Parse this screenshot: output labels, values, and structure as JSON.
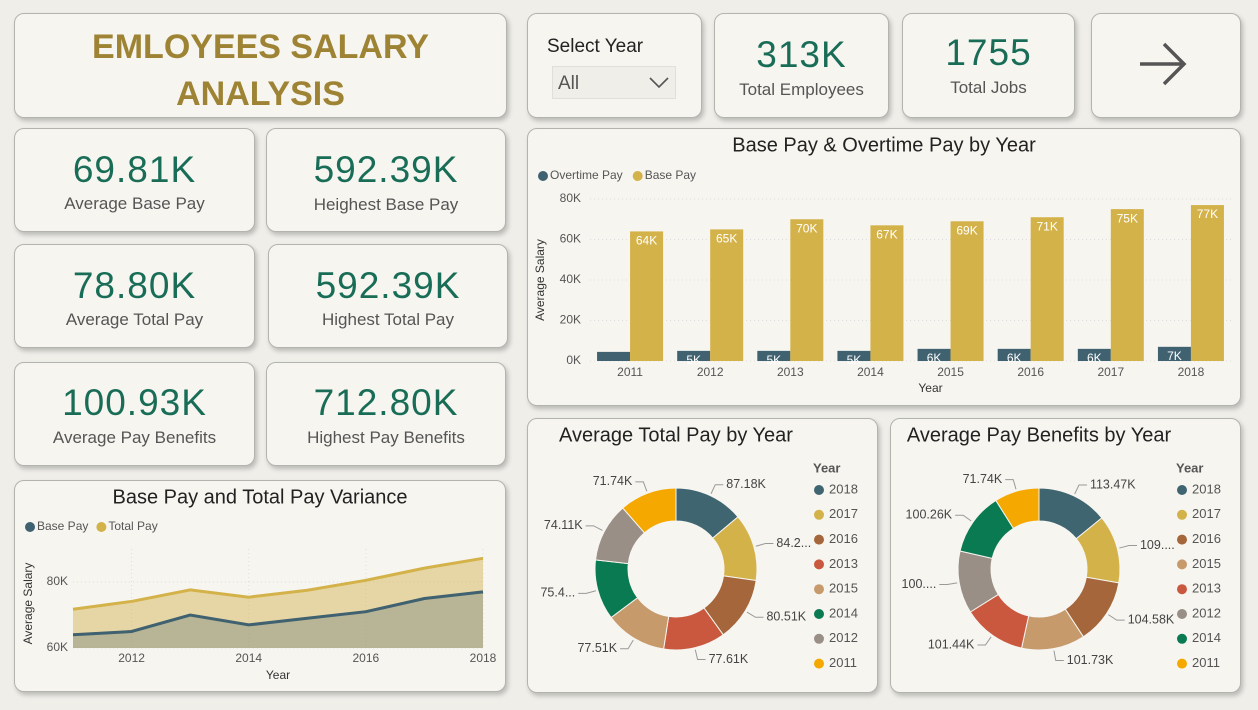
{
  "header": {
    "title": "EMLOYEES SALARY ANALYSIS"
  },
  "filter": {
    "label": "Select Year",
    "value": "All"
  },
  "kpis": [
    {
      "value": "313K",
      "label": "Total Employees"
    },
    {
      "value": "1755",
      "label": "Total Jobs"
    },
    {
      "value": "69.81K",
      "label": "Average Base Pay"
    },
    {
      "value": "592.39K",
      "label": "Heighest Base Pay"
    },
    {
      "value": "78.80K",
      "label": "Average Total Pay"
    },
    {
      "value": "592.39K",
      "label": "Highest Total Pay"
    },
    {
      "value": "100.93K",
      "label": "Average Pay Benefits"
    },
    {
      "value": "712.80K",
      "label": "Highest Pay Benefits"
    }
  ],
  "chart_data": [
    {
      "type": "bar",
      "title": "Base Pay & Overtime Pay by Year",
      "xlabel": "Year",
      "ylabel": "Average Salary",
      "categories": [
        "2011",
        "2012",
        "2013",
        "2014",
        "2015",
        "2016",
        "2017",
        "2018"
      ],
      "series": [
        {
          "name": "Overtime Pay",
          "color": "#3f6170",
          "values": [
            4500,
            5000,
            5000,
            5000,
            6000,
            6000,
            6000,
            7000
          ],
          "value_labels": [
            null,
            "5K",
            "5K",
            "5K",
            "6K",
            "6K",
            "6K",
            "7K"
          ]
        },
        {
          "name": "Base Pay",
          "color": "#d4b24a",
          "values": [
            64000,
            65000,
            70000,
            67000,
            69000,
            71000,
            75000,
            77000
          ],
          "value_labels": [
            "64K",
            "65K",
            "70K",
            "67K",
            "69K",
            "71K",
            "75K",
            "77K"
          ]
        }
      ],
      "ylim": [
        0,
        80000
      ],
      "yticks": [
        {
          "value": 0,
          "label": "0K"
        },
        {
          "value": 20000,
          "label": "20K"
        },
        {
          "value": 40000,
          "label": "40K"
        },
        {
          "value": 60000,
          "label": "60K"
        },
        {
          "value": 80000,
          "label": "80K"
        }
      ],
      "grid": true,
      "legend": "top-left"
    },
    {
      "type": "area",
      "title": "Base Pay and Total Pay Variance",
      "xlabel": "Year",
      "ylabel": "Average Salary",
      "x": [
        2011,
        2012,
        2013,
        2014,
        2015,
        2016,
        2017,
        2018
      ],
      "series": [
        {
          "name": "Base Pay",
          "color": "#3f6170",
          "values": [
            64000,
            65000,
            70000,
            67000,
            69000,
            71000,
            75000,
            77000
          ]
        },
        {
          "name": "Total Pay",
          "color": "#d4b24a",
          "values": [
            71740,
            74110,
            77610,
            75400,
            77510,
            80510,
            84200,
            87180
          ]
        }
      ],
      "xlim": [
        2011,
        2018
      ],
      "xticks": [
        2012,
        2014,
        2016,
        2018
      ],
      "ylim": [
        60000,
        90000
      ],
      "yticks": [
        {
          "value": 60000,
          "label": "60K"
        },
        {
          "value": 80000,
          "label": "80K"
        }
      ],
      "grid": true,
      "legend": "top-left"
    },
    {
      "type": "pie",
      "title": "Average Total Pay by Year",
      "legend_title": "Year",
      "categories": [
        "2018",
        "2017",
        "2016",
        "2013",
        "2015",
        "2014",
        "2012",
        "2011"
      ],
      "values": [
        87.18,
        84.2,
        80.51,
        77.61,
        77.51,
        75.4,
        74.11,
        71.74
      ],
      "value_labels": [
        "87.18K",
        "84.2...",
        "80.51K",
        "77.61K",
        "77.51K",
        "75.4...",
        "74.11K",
        "71.74K"
      ],
      "colors": [
        "#3f6571",
        "#d4b24a",
        "#a4663a",
        "#c9583e",
        "#c79a6c",
        "#0a7a52",
        "#9a8f86",
        "#f5a800"
      ]
    },
    {
      "type": "pie",
      "title": "Average Pay Benefits by Year",
      "legend_title": "Year",
      "categories": [
        "2018",
        "2017",
        "2016",
        "2015",
        "2013",
        "2012",
        "2014",
        "2011"
      ],
      "values": [
        113.47,
        109.2,
        104.58,
        101.73,
        101.44,
        100.1,
        100.26,
        71.74
      ],
      "value_labels": [
        "113.47K",
        "109....",
        "104.58K",
        "101.73K",
        "101.44K",
        "100....",
        "100.26K",
        "71.74K"
      ],
      "colors": [
        "#3f6571",
        "#d4b24a",
        "#a4663a",
        "#c79a6c",
        "#c9583e",
        "#9a8f86",
        "#0a7a52",
        "#f5a800"
      ]
    }
  ]
}
